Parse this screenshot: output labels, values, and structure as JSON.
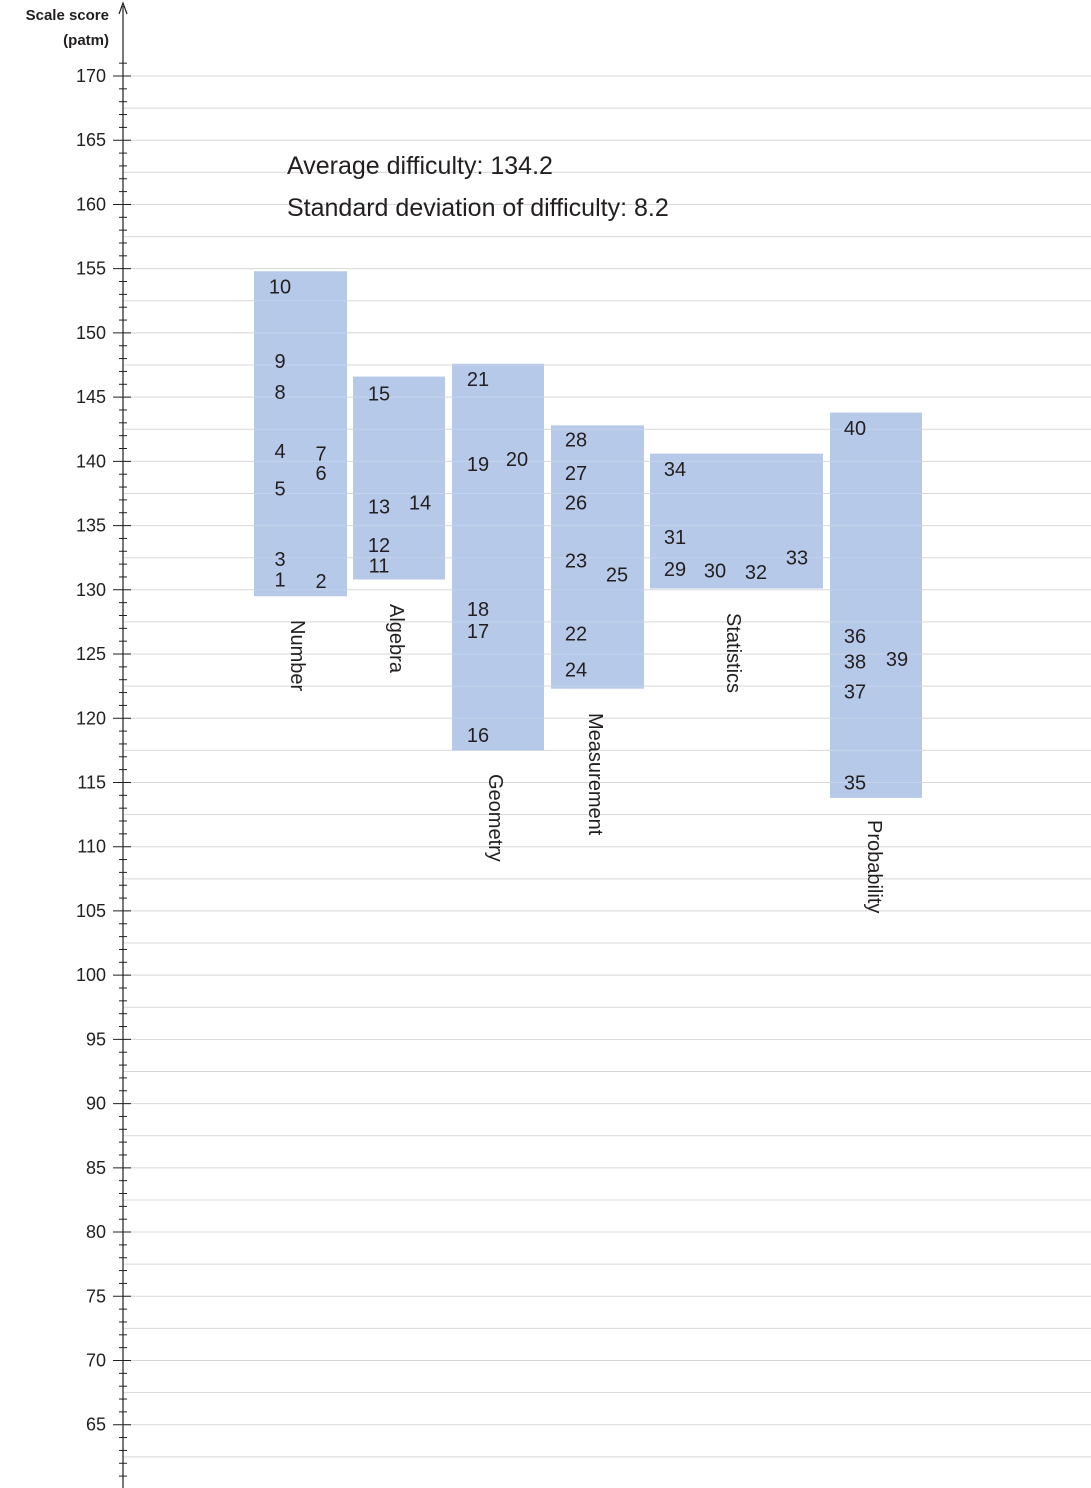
{
  "chart_data": {
    "type": "scatter",
    "axis_title_line1": "Scale score",
    "axis_title_line2": "(patm)",
    "ylim": [
      60,
      172
    ],
    "y_ticks": [
      65,
      70,
      75,
      80,
      85,
      90,
      95,
      100,
      105,
      110,
      115,
      120,
      125,
      130,
      135,
      140,
      145,
      150,
      155,
      160,
      165,
      170
    ],
    "grid": true,
    "annotations": [
      "Average difficulty: 134.2",
      "Standard deviation of difficulty: 8.2"
    ],
    "strands": [
      {
        "name": "Number",
        "range": [
          129.5,
          154.8
        ],
        "items": [
          {
            "label": "10",
            "y": 153.6,
            "col": 0
          },
          {
            "label": "9",
            "y": 147.8,
            "col": 0
          },
          {
            "label": "8",
            "y": 145.4,
            "col": 0
          },
          {
            "label": "4",
            "y": 140.8,
            "col": 0
          },
          {
            "label": "7",
            "y": 140.6,
            "col": 1
          },
          {
            "label": "6",
            "y": 139.1,
            "col": 1
          },
          {
            "label": "5",
            "y": 137.9,
            "col": 0
          },
          {
            "label": "3",
            "y": 132.4,
            "col": 0
          },
          {
            "label": "1",
            "y": 130.8,
            "col": 0
          },
          {
            "label": "2",
            "y": 130.7,
            "col": 1
          }
        ]
      },
      {
        "name": "Algebra",
        "range": [
          130.8,
          146.6
        ],
        "items": [
          {
            "label": "15",
            "y": 145.3,
            "col": 0
          },
          {
            "label": "14",
            "y": 136.8,
            "col": 1
          },
          {
            "label": "13",
            "y": 136.5,
            "col": 0
          },
          {
            "label": "12",
            "y": 133.5,
            "col": 0
          },
          {
            "label": "11",
            "y": 131.9,
            "col": 0
          }
        ]
      },
      {
        "name": "Geometry",
        "range": [
          117.5,
          147.6
        ],
        "items": [
          {
            "label": "21",
            "y": 146.4,
            "col": 0
          },
          {
            "label": "20",
            "y": 140.2,
            "col": 1
          },
          {
            "label": "19",
            "y": 139.8,
            "col": 0
          },
          {
            "label": "18",
            "y": 128.5,
            "col": 0
          },
          {
            "label": "17",
            "y": 126.8,
            "col": 0
          },
          {
            "label": "16",
            "y": 118.7,
            "col": 0
          }
        ]
      },
      {
        "name": "Measurement",
        "range": [
          122.3,
          142.8
        ],
        "items": [
          {
            "label": "28",
            "y": 141.7,
            "col": 0
          },
          {
            "label": "27",
            "y": 139.1,
            "col": 0
          },
          {
            "label": "26",
            "y": 136.8,
            "col": 0
          },
          {
            "label": "23",
            "y": 132.3,
            "col": 0
          },
          {
            "label": "25",
            "y": 131.2,
            "col": 1
          },
          {
            "label": "22",
            "y": 126.6,
            "col": 0
          },
          {
            "label": "24",
            "y": 123.8,
            "col": 0
          }
        ]
      },
      {
        "name": "Statistics",
        "range": [
          130.1,
          140.6
        ],
        "items": [
          {
            "label": "34",
            "y": 139.4,
            "col": 0
          },
          {
            "label": "31",
            "y": 134.1,
            "col": 0
          },
          {
            "label": "29",
            "y": 131.6,
            "col": 0
          },
          {
            "label": "30",
            "y": 131.5,
            "col": 1
          },
          {
            "label": "32",
            "y": 131.4,
            "col": 2
          },
          {
            "label": "33",
            "y": 132.5,
            "col": 3
          }
        ]
      },
      {
        "name": "Probability",
        "range": [
          113.8,
          143.8
        ],
        "items": [
          {
            "label": "40",
            "y": 142.6,
            "col": 0
          },
          {
            "label": "36",
            "y": 126.4,
            "col": 0
          },
          {
            "label": "39",
            "y": 124.6,
            "col": 1
          },
          {
            "label": "38",
            "y": 124.4,
            "col": 0
          },
          {
            "label": "37",
            "y": 122.1,
            "col": 0
          },
          {
            "label": "35",
            "y": 115.0,
            "col": 0
          }
        ]
      }
    ]
  },
  "colors": {
    "band_fill": "#a9c0e4",
    "grid_line": "#d8d8d8",
    "grid_line_on_band": "#c5d4ec",
    "axis": "#231f20",
    "text": "#231f20"
  }
}
